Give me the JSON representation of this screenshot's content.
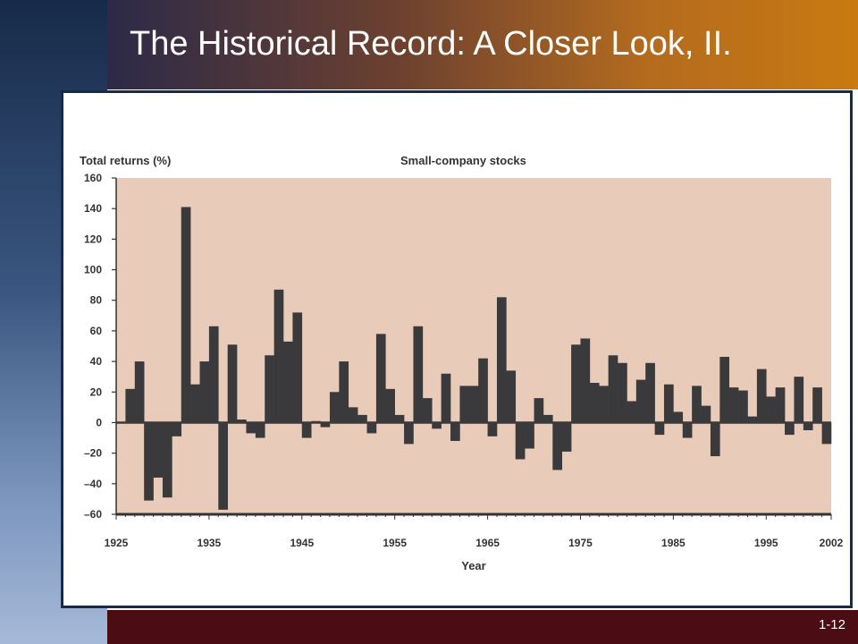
{
  "slide": {
    "title": "The Historical Record: A Closer Look, II.",
    "number": "1-12"
  },
  "colors": {
    "plot_background": "#e8cbb8",
    "bar": "#3a3a3c",
    "axis_text": "#333333"
  },
  "chart_data": {
    "type": "bar",
    "title": "Small-company stocks",
    "ylabel": "Total returns (%)",
    "xlabel": "Year",
    "ylim": [
      -60,
      160
    ],
    "xlim": [
      1925,
      2002
    ],
    "grid": false,
    "yticks": [
      160,
      140,
      120,
      100,
      80,
      60,
      40,
      20,
      0,
      -20,
      -40,
      -60
    ],
    "ytick_labels": [
      "160",
      "140",
      "120",
      "100",
      "80",
      "60",
      "40",
      "20",
      "0",
      "–20",
      "–40",
      "–60"
    ],
    "xticks": [
      1925,
      1935,
      1945,
      1955,
      1965,
      1975,
      1985,
      1995,
      2002
    ],
    "xtick_labels": [
      "1925",
      "1935",
      "1945",
      "1955",
      "1965",
      "1975",
      "1985",
      "1995",
      "2002"
    ],
    "categories": [
      1926,
      1927,
      1928,
      1929,
      1930,
      1931,
      1932,
      1933,
      1934,
      1935,
      1936,
      1937,
      1938,
      1939,
      1940,
      1941,
      1942,
      1943,
      1944,
      1945,
      1946,
      1947,
      1948,
      1949,
      1950,
      1951,
      1952,
      1953,
      1954,
      1955,
      1956,
      1957,
      1958,
      1959,
      1960,
      1961,
      1962,
      1963,
      1964,
      1965,
      1966,
      1967,
      1968,
      1969,
      1970,
      1971,
      1972,
      1973,
      1974,
      1975,
      1976,
      1977,
      1978,
      1979,
      1980,
      1981,
      1982,
      1983,
      1984,
      1985,
      1986,
      1987,
      1988,
      1989,
      1990,
      1991,
      1992,
      1993,
      1994,
      1995,
      1996,
      1997,
      1998,
      1999,
      2000,
      2001,
      2002
    ],
    "values": [
      0.3,
      22,
      40,
      -51,
      -36,
      -49,
      -9,
      141,
      25,
      40,
      63,
      -57,
      51,
      2,
      -7,
      -10,
      44,
      87,
      53,
      72,
      -10,
      1,
      -3,
      20,
      40,
      10,
      5,
      -7,
      58,
      22,
      5,
      -14,
      63,
      16,
      -4,
      32,
      -12,
      24,
      24,
      42,
      -9,
      82,
      34,
      -24,
      -17,
      16,
      5,
      -31,
      -19,
      51,
      55,
      26,
      24,
      44,
      39,
      14,
      28,
      39,
      -8,
      25,
      7,
      -10,
      24,
      11,
      -22,
      43,
      23,
      21,
      4,
      35,
      17,
      23,
      -8,
      30,
      -5,
      23,
      -14
    ]
  }
}
